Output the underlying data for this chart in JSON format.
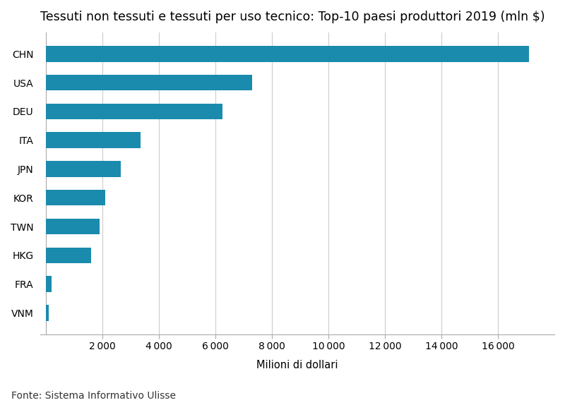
{
  "title": "Tessuti non tessuti e tessuti per uso tecnico: Top-10 paesi produttori 2019 (mln $)",
  "categories": [
    "VNM",
    "FRA",
    "HKG",
    "TWN",
    "KOR",
    "JPN",
    "ITA",
    "DEU",
    "USA",
    "CHN"
  ],
  "values": [
    80,
    200,
    1600,
    1900,
    2100,
    2650,
    3350,
    6250,
    7300,
    17100
  ],
  "bar_color": "#1a8bad",
  "xlabel": "Milioni di dollari",
  "ylabel": "",
  "xlim": [
    -200,
    18000
  ],
  "xticks": [
    2000,
    4000,
    6000,
    8000,
    10000,
    12000,
    14000,
    16000
  ],
  "background_color": "#ffffff",
  "grid_color": "#cccccc",
  "footnote": "Fonte: Sistema Informativo Ulisse",
  "title_fontsize": 12.5,
  "label_fontsize": 10.5,
  "tick_fontsize": 10,
  "footnote_fontsize": 10,
  "bar_height": 0.55
}
